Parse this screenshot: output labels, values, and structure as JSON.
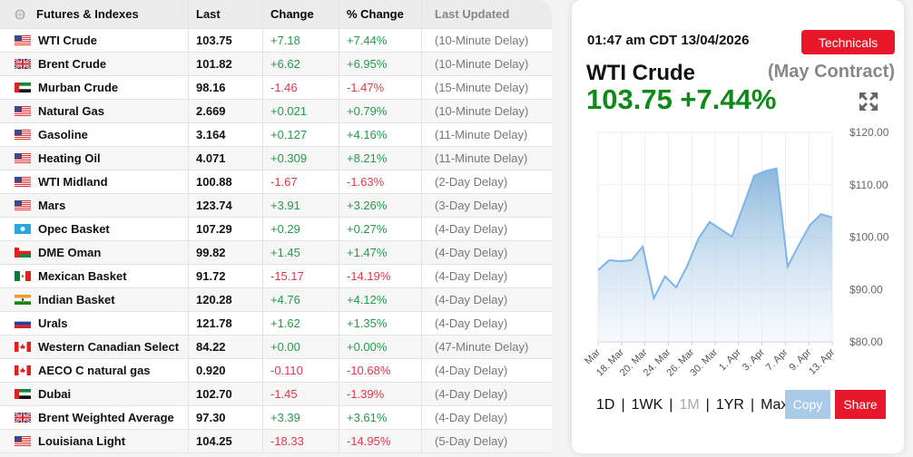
{
  "table": {
    "headers": [
      "Futures & Indexes",
      "Last",
      "Change",
      "% Change",
      "Last Updated"
    ],
    "header_icon": "globe-icon",
    "rows": [
      {
        "flag": "us",
        "name": "WTI Crude",
        "last": "103.75",
        "change": "+7.18",
        "pct": "+7.44%",
        "updated": "(10-Minute Delay)"
      },
      {
        "flag": "gb",
        "name": "Brent Crude",
        "last": "101.82",
        "change": "+6.62",
        "pct": "+6.95%",
        "updated": "(10-Minute Delay)"
      },
      {
        "flag": "ae",
        "name": "Murban Crude",
        "last": "98.16",
        "change": "-1.46",
        "pct": "-1.47%",
        "updated": "(15-Minute Delay)"
      },
      {
        "flag": "us",
        "name": "Natural Gas",
        "last": "2.669",
        "change": "+0.021",
        "pct": "+0.79%",
        "updated": "(10-Minute Delay)"
      },
      {
        "flag": "us",
        "name": "Gasoline",
        "last": "3.164",
        "change": "+0.127",
        "pct": "+4.16%",
        "updated": "(11-Minute Delay)"
      },
      {
        "flag": "us",
        "name": "Heating Oil",
        "last": "4.071",
        "change": "+0.309",
        "pct": "+8.21%",
        "updated": "(11-Minute Delay)"
      },
      {
        "flag": "us",
        "name": "WTI Midland",
        "last": "100.88",
        "change": "-1.67",
        "pct": "-1.63%",
        "updated": "(2-Day Delay)"
      },
      {
        "flag": "us",
        "name": "Mars",
        "last": "123.74",
        "change": "+3.91",
        "pct": "+3.26%",
        "updated": "(3-Day Delay)"
      },
      {
        "flag": "opec",
        "name": "Opec Basket",
        "last": "107.29",
        "change": "+0.29",
        "pct": "+0.27%",
        "updated": "(4-Day Delay)"
      },
      {
        "flag": "om",
        "name": "DME Oman",
        "last": "99.82",
        "change": "+1.45",
        "pct": "+1.47%",
        "updated": "(4-Day Delay)"
      },
      {
        "flag": "mx",
        "name": "Mexican Basket",
        "last": "91.72",
        "change": "-15.17",
        "pct": "-14.19%",
        "updated": "(4-Day Delay)"
      },
      {
        "flag": "in",
        "name": "Indian Basket",
        "last": "120.28",
        "change": "+4.76",
        "pct": "+4.12%",
        "updated": "(4-Day Delay)"
      },
      {
        "flag": "ru",
        "name": "Urals",
        "last": "121.78",
        "change": "+1.62",
        "pct": "+1.35%",
        "updated": "(4-Day Delay)"
      },
      {
        "flag": "ca",
        "name": "Western Canadian Select",
        "last": "84.22",
        "change": "+0.00",
        "pct": "+0.00%",
        "updated": "(47-Minute Delay)"
      },
      {
        "flag": "ca",
        "name": "AECO C natural gas",
        "last": "0.920",
        "change": "-0.110",
        "pct": "-10.68%",
        "updated": "(4-Day Delay)"
      },
      {
        "flag": "ae",
        "name": "Dubai",
        "last": "102.70",
        "change": "-1.45",
        "pct": "-1.39%",
        "updated": "(4-Day Delay)"
      },
      {
        "flag": "gb",
        "name": "Brent Weighted Average",
        "last": "97.30",
        "change": "+3.39",
        "pct": "+3.61%",
        "updated": "(4-Day Delay)"
      },
      {
        "flag": "us",
        "name": "Louisiana Light",
        "last": "104.25",
        "change": "-18.33",
        "pct": "-14.95%",
        "updated": "(5-Day Delay)"
      }
    ]
  },
  "panel": {
    "timestamp": "01:47 am CDT 13/04/2026",
    "technicals_label": "Technicals",
    "name": "WTI Crude",
    "contract": "(May Contract)",
    "price": "103.75 +7.44%",
    "expand_icon": "expand-arrows-icon",
    "ranges": [
      "1D",
      "1WK",
      "1M",
      "1YR",
      "Max"
    ],
    "active_range": "1M",
    "copy_label": "Copy",
    "share_label": "Share"
  },
  "colors": {
    "positive": "#1f9d48",
    "negative": "#e2384d",
    "price": "#0d8a17",
    "accent": "#e8182a",
    "line": "#7cb5ec"
  },
  "chart_data": {
    "type": "area",
    "x_tick_labels": [
      "Mar",
      "18. Mar",
      "20. Mar",
      "24. Mar",
      "26. Mar",
      "30. Mar",
      "1. Apr",
      "3. Apr",
      "7. Apr",
      "9. Apr",
      "13. Apr"
    ],
    "y_tick_labels": [
      "$120.00",
      "$110.00",
      "$100.00",
      "$90.00",
      "$80.00"
    ],
    "ylim": [
      80,
      120
    ],
    "grid": true,
    "values": [
      93.7,
      95.6,
      95.4,
      95.6,
      98.2,
      88.3,
      92.5,
      90.4,
      94.5,
      99.7,
      102.9,
      101.5,
      100.1,
      105.8,
      111.7,
      112.6,
      113.1,
      94.4,
      98.5,
      102.3,
      104.4,
      103.75
    ]
  }
}
